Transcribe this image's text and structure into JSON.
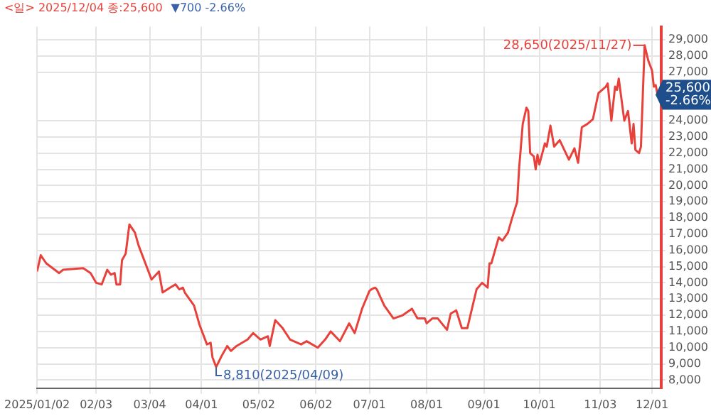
{
  "chart_data": {
    "type": "line",
    "title": "<일> 2025/12/04 종:25,600",
    "subtitle": "▼700 -2.66%",
    "color": "#e8413b",
    "marker": "none",
    "line_style": "solid",
    "grid": true,
    "x": [
      "2025-01-02",
      "2025-01-04",
      "2025-01-07",
      "2025-01-14",
      "2025-01-16",
      "2025-01-27",
      "2025-01-31",
      "2025-02-03",
      "2025-02-06",
      "2025-02-09",
      "2025-02-11",
      "2025-02-13",
      "2025-02-14",
      "2025-02-16",
      "2025-02-17",
      "2025-02-19",
      "2025-02-21",
      "2025-02-24",
      "2025-02-26",
      "2025-03-05",
      "2025-03-09",
      "2025-03-11",
      "2025-03-15",
      "2025-03-18",
      "2025-03-20",
      "2025-03-22",
      "2025-03-23",
      "2025-03-28",
      "2025-03-31",
      "2025-04-04",
      "2025-04-06",
      "2025-04-07",
      "2025-04-09",
      "2025-04-12",
      "2025-04-15",
      "2025-04-17",
      "2025-04-20",
      "2025-04-26",
      "2025-04-29",
      "2025-05-03",
      "2025-05-07",
      "2025-05-08",
      "2025-05-11",
      "2025-05-15",
      "2025-05-19",
      "2025-05-25",
      "2025-05-28",
      "2025-06-03",
      "2025-06-07",
      "2025-06-10",
      "2025-06-15",
      "2025-06-20",
      "2025-06-23",
      "2025-06-27",
      "2025-07-01",
      "2025-07-02",
      "2025-07-04",
      "2025-07-05",
      "2025-07-09",
      "2025-07-14",
      "2025-07-19",
      "2025-07-24",
      "2025-07-27",
      "2025-07-31",
      "2025-08-01",
      "2025-08-04",
      "2025-08-07",
      "2025-08-12",
      "2025-08-14",
      "2025-08-17",
      "2025-08-20",
      "2025-08-23",
      "2025-08-28",
      "2025-08-31",
      "2025-09-03",
      "2025-09-04",
      "2025-09-05",
      "2025-09-09",
      "2025-09-11",
      "2025-09-14",
      "2025-09-16",
      "2025-09-19",
      "2025-09-20",
      "2025-09-22",
      "2025-09-24",
      "2025-09-25",
      "2025-09-26",
      "2025-09-28",
      "2025-09-29",
      "2025-09-30",
      "2025-10-01",
      "2025-10-04",
      "2025-10-05",
      "2025-10-07",
      "2025-10-09",
      "2025-10-12",
      "2025-10-17",
      "2025-10-20",
      "2025-10-22",
      "2025-10-24",
      "2025-10-27",
      "2025-10-30",
      "2025-11-02",
      "2025-11-06",
      "2025-11-07",
      "2025-11-09",
      "2025-11-11",
      "2025-11-12",
      "2025-11-13",
      "2025-11-16",
      "2025-11-18",
      "2025-11-20",
      "2025-11-21",
      "2025-11-22",
      "2025-11-24",
      "2025-11-25",
      "2025-11-27",
      "2025-11-29",
      "2025-12-01",
      "2025-12-02",
      "2025-12-03",
      "2025-12-04"
    ],
    "values": [
      14700,
      15700,
      15200,
      14600,
      14800,
      14900,
      14600,
      14000,
      13900,
      14800,
      14500,
      14600,
      13900,
      13900,
      15400,
      15800,
      17600,
      17100,
      16300,
      14200,
      14700,
      13400,
      13700,
      13900,
      13600,
      13700,
      13400,
      12600,
      11400,
      10200,
      10300,
      9400,
      8810,
      9500,
      10100,
      9800,
      10100,
      10500,
      10900,
      10500,
      10700,
      10100,
      11700,
      11200,
      10500,
      10200,
      10400,
      10000,
      10500,
      11000,
      10400,
      11500,
      10900,
      12400,
      13500,
      13600,
      13700,
      13600,
      12600,
      11800,
      12000,
      12400,
      11800,
      11800,
      11500,
      11800,
      11800,
      11100,
      12100,
      12300,
      11200,
      11200,
      13600,
      14000,
      13700,
      15200,
      15200,
      16800,
      16600,
      17100,
      17900,
      19000,
      21000,
      23800,
      24800,
      24600,
      22000,
      21800,
      21000,
      21900,
      21300,
      22600,
      22400,
      23700,
      22400,
      22800,
      21600,
      22300,
      21400,
      23600,
      23800,
      24100,
      25700,
      26100,
      26300,
      24000,
      26100,
      25900,
      26600,
      24000,
      24600,
      22600,
      23800,
      22200,
      22000,
      22400,
      28650,
      27700,
      27100,
      26100,
      26200,
      25600
    ],
    "xlim": [
      "2025-01-02",
      "2025-12-06"
    ],
    "xticks": [
      {
        "value": "2025-01-02",
        "label": "2025/01/02"
      },
      {
        "value": "2025-02-03",
        "label": "02/03"
      },
      {
        "value": "2025-03-04",
        "label": "03/04"
      },
      {
        "value": "2025-04-01",
        "label": "04/01"
      },
      {
        "value": "2025-05-02",
        "label": "05/02"
      },
      {
        "value": "2025-06-02",
        "label": "06/02"
      },
      {
        "value": "2025-07-01",
        "label": "07/01"
      },
      {
        "value": "2025-08-01",
        "label": "08/01"
      },
      {
        "value": "2025-09-01",
        "label": "09/01"
      },
      {
        "value": "2025-10-01",
        "label": "10/01"
      },
      {
        "value": "2025-11-03",
        "label": "11/03"
      },
      {
        "value": "2025-12-01",
        "label": "12/01"
      }
    ],
    "ylim": [
      7500,
      29800
    ],
    "yticks": [
      {
        "value": 8000,
        "label": "8,000"
      },
      {
        "value": 9000,
        "label": "9,000"
      },
      {
        "value": 10000,
        "label": "10,000"
      },
      {
        "value": 11000,
        "label": "11,000"
      },
      {
        "value": 12000,
        "label": "12,000"
      },
      {
        "value": 13000,
        "label": "13,000"
      },
      {
        "value": 14000,
        "label": "14,000"
      },
      {
        "value": 15000,
        "label": "15,000"
      },
      {
        "value": 16000,
        "label": "16,000"
      },
      {
        "value": 17000,
        "label": "17,000"
      },
      {
        "value": 18000,
        "label": "18,000"
      },
      {
        "value": 19000,
        "label": "19,000"
      },
      {
        "value": 20000,
        "label": "20,000"
      },
      {
        "value": 21000,
        "label": "21,000"
      },
      {
        "value": 22000,
        "label": "22,000"
      },
      {
        "value": 23000,
        "label": "23,000"
      },
      {
        "value": 24000,
        "label": "24,000"
      },
      {
        "value": 27000,
        "label": "27,000"
      },
      {
        "value": 28000,
        "label": "28,000"
      },
      {
        "value": 29000,
        "label": "29,000"
      }
    ],
    "annotations": [
      {
        "text": "28,650(2025/11/27)",
        "x": "2025-11-27",
        "y": 28650
      },
      {
        "text": "8,810(2025/04/09)",
        "x": "2025-04-09",
        "y": 8810
      },
      {
        "text": "25,600 -2.66%",
        "x": "2025-12-04",
        "y": 25600
      }
    ]
  }
}
